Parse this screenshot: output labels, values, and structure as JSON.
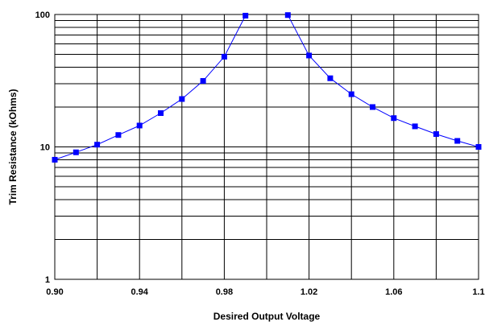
{
  "chart_data": {
    "type": "line",
    "xlabel": "Desired Output Voltage",
    "ylabel": "Trim Resistance (kOhms)",
    "y_scale": "log",
    "xlim": [
      0.9,
      1.1
    ],
    "ylim": [
      1,
      100
    ],
    "grid": true,
    "x_ticks": [
      0.9,
      0.92,
      0.94,
      0.96,
      0.98,
      1.0,
      1.02,
      1.04,
      1.06,
      1.08,
      1.1
    ],
    "x_tick_labels": [
      "0.90",
      "0.94",
      "0.98",
      "1.02",
      "1.06",
      "1.1"
    ],
    "x_tick_label_values": [
      0.9,
      0.94,
      0.98,
      1.02,
      1.06,
      1.1
    ],
    "y_tick_labels": [
      "1",
      "10",
      "100"
    ],
    "y_tick_label_values": [
      1,
      10,
      100
    ],
    "series": [
      {
        "color": "#0000ff",
        "marker": "square",
        "segments": [
          {
            "x": [
              0.9,
              0.91,
              0.92,
              0.93,
              0.94,
              0.95,
              0.96,
              0.97,
              0.98,
              0.99
            ],
            "y": [
              8.0,
              9.1,
              10.4,
              12.3,
              14.5,
              18.0,
              23.0,
              31.5,
              48.0,
              98.0
            ]
          },
          {
            "x": [
              1.01,
              1.02,
              1.03,
              1.04,
              1.05,
              1.06,
              1.07,
              1.08,
              1.09,
              1.1
            ],
            "y": [
              99.0,
              49.0,
              33.0,
              25.0,
              20.0,
              16.5,
              14.3,
              12.5,
              11.1,
              10.0
            ]
          }
        ]
      }
    ]
  }
}
